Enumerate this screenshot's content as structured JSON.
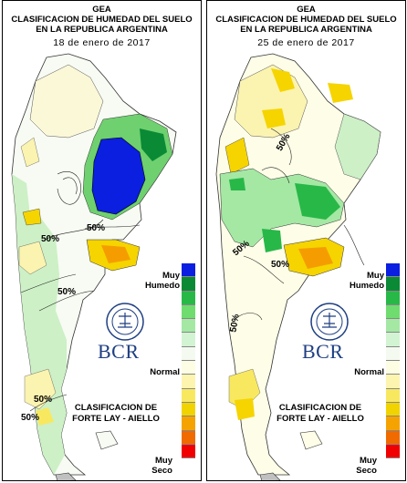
{
  "title_lines": [
    "GEA",
    "CLASIFICACION DE HUMEDAD DEL SUELO",
    "EN LA REPUBLICA ARGENTINA"
  ],
  "panels": [
    {
      "date": "18 de enero de 2017",
      "contour_labels": [
        "50%",
        "50%",
        "50%",
        "50%",
        "50%"
      ]
    },
    {
      "date": "25 de enero de 2017",
      "contour_labels": [
        "50%",
        "50%",
        "50%",
        "50%"
      ]
    }
  ],
  "legend": {
    "top_label": "Muy\nHumedo",
    "middle_label": "Normal",
    "bottom_label": "Muy\nSeco",
    "classification": "CLASIFICACION DE\nFORTE LAY - AIELLO",
    "colors": [
      "#0a1fe0",
      "#0a8a35",
      "#28b848",
      "#6fdc6f",
      "#a4e8a4",
      "#d2f4d2",
      "#f4faf0",
      "#fdfde4",
      "#fdf4b0",
      "#f8e860",
      "#f0d300",
      "#f5a300",
      "#f06a00",
      "#f00000"
    ]
  },
  "brand": {
    "logo_text": "BCR",
    "seal_name": "bolsa-seal"
  }
}
